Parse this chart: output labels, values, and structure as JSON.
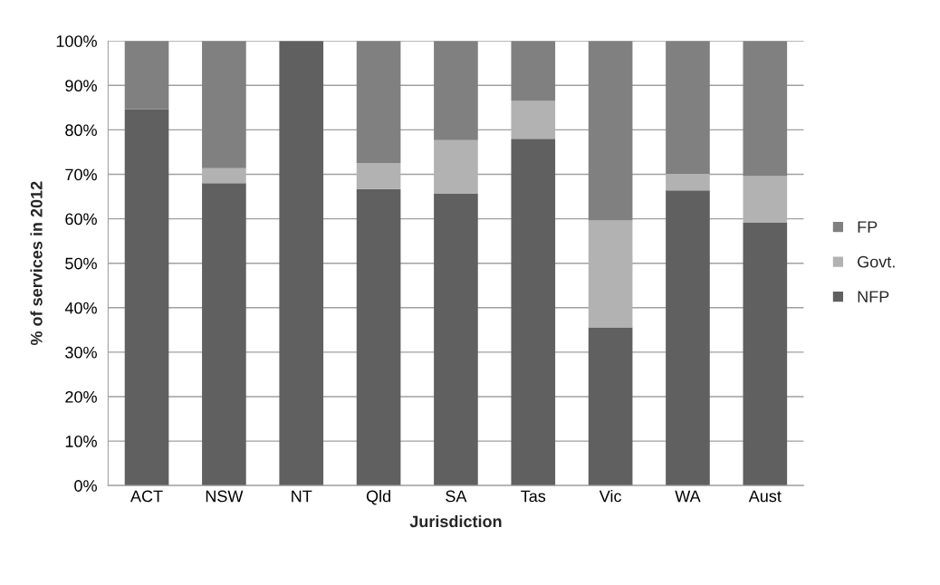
{
  "chart_data": {
    "type": "bar",
    "stacked": true,
    "xlabel": "Jurisdiction",
    "ylabel": "% of services in 2012",
    "categories": [
      "ACT",
      "NSW",
      "NT",
      "Qld",
      "SA",
      "Tas",
      "Vic",
      "WA",
      "Aust"
    ],
    "series": [
      {
        "name": "NFP",
        "color": "#606060",
        "values": [
          84.6,
          68.0,
          100,
          66.7,
          65.6,
          78.0,
          35.6,
          66.4,
          59.1
        ]
      },
      {
        "name": "Govt.",
        "color": "#b2b2b2",
        "values": [
          0,
          3.4,
          0,
          5.8,
          12.1,
          8.5,
          24.0,
          3.7,
          10.5
        ]
      },
      {
        "name": "FP",
        "color": "#808080",
        "values": [
          15.4,
          28.6,
          0,
          27.5,
          22.3,
          13.5,
          40.4,
          29.9,
          30.4
        ]
      }
    ],
    "ylim": [
      0,
      100
    ],
    "yticks": [
      {
        "value": 0,
        "label": "0%"
      },
      {
        "value": 10,
        "label": "10%"
      },
      {
        "value": 20,
        "label": "20%"
      },
      {
        "value": 30,
        "label": "30%"
      },
      {
        "value": 40,
        "label": "40%"
      },
      {
        "value": 50,
        "label": "50%"
      },
      {
        "value": 60,
        "label": "60%"
      },
      {
        "value": 70,
        "label": "70%"
      },
      {
        "value": 80,
        "label": "80%"
      },
      {
        "value": 90,
        "label": "90%"
      },
      {
        "value": 100,
        "label": "100%"
      }
    ],
    "grid": "y",
    "legend": "right"
  }
}
